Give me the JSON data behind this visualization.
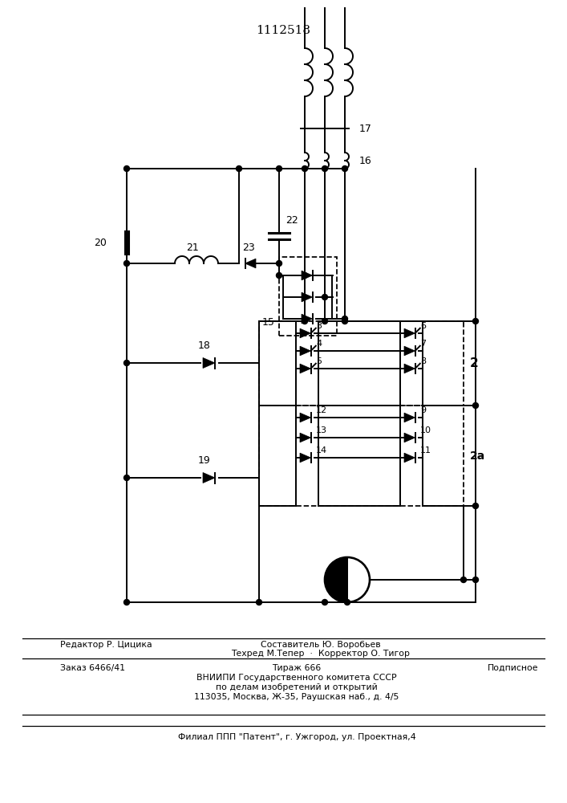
{
  "title": "1112518",
  "bg_color": "#ffffff",
  "line_color": "#000000",
  "title_fontsize": 11,
  "lw": 1.4,
  "footer": {
    "line1_left": "Редактор Р. Цицика",
    "line1_center": "Составитель Ю. Воробьев",
    "line2_center": "Техред М.Тепер  ·  Корректор О. Тигор",
    "line3_left": "Заказ 6466/41",
    "line3_center": "Тираж 666",
    "line3_right": "Подписное",
    "line4_center": "ВНИИПИ Государственного комитета СССР",
    "line5_center": "по делам изобретений и открытий",
    "line6_center": "113035, Москва, Ж-35, Раушская наб., д. 4/5",
    "line7_center": "Филиал ППП \"Патент\", г. Ужгород, ул. Проектная,4"
  }
}
